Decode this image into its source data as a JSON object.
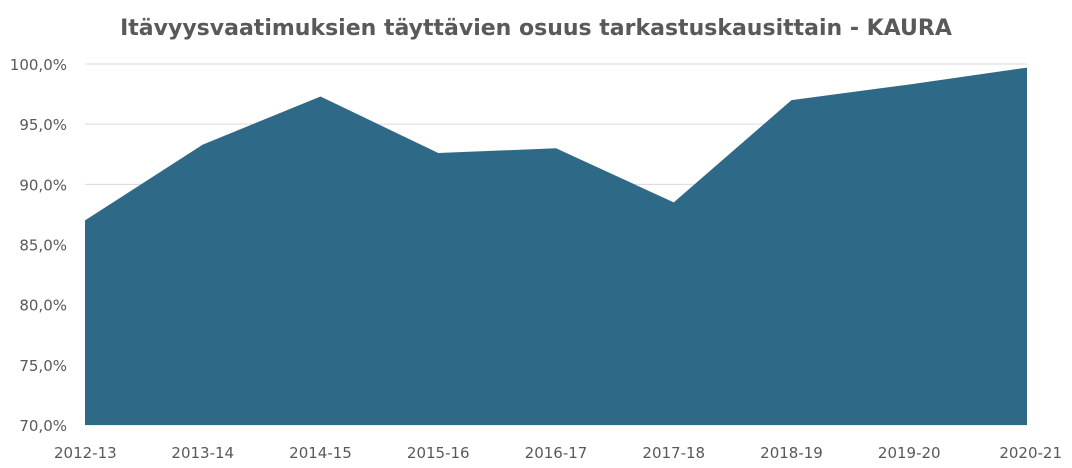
{
  "chart_data": {
    "type": "area",
    "title": "Itävyysvaatimuksien täyttävien osuus tarkastuskausittain - KAURA",
    "xlabel": "",
    "ylabel": "",
    "categories": [
      "2012-13",
      "2013-14",
      "2014-15",
      "2015-16",
      "2016-17",
      "2017-18",
      "2018-19",
      "2019-20",
      "2020-21"
    ],
    "series": [
      {
        "values": [
          87.0,
          93.3,
          97.3,
          92.6,
          93.0,
          88.5,
          97.0,
          98.3,
          99.7
        ]
      }
    ],
    "ylim": [
      70,
      100
    ],
    "yticks": [
      "70,0%",
      "75,0%",
      "80,0%",
      "85,0%",
      "90,0%",
      "95,0%",
      "100,0%"
    ],
    "ytick_values": [
      70,
      75,
      80,
      85,
      90,
      95,
      100
    ],
    "grid": true,
    "legend": "none",
    "colors": {
      "area": "#2e6a88",
      "grid": "#d9d9d9",
      "text": "#595959"
    }
  }
}
